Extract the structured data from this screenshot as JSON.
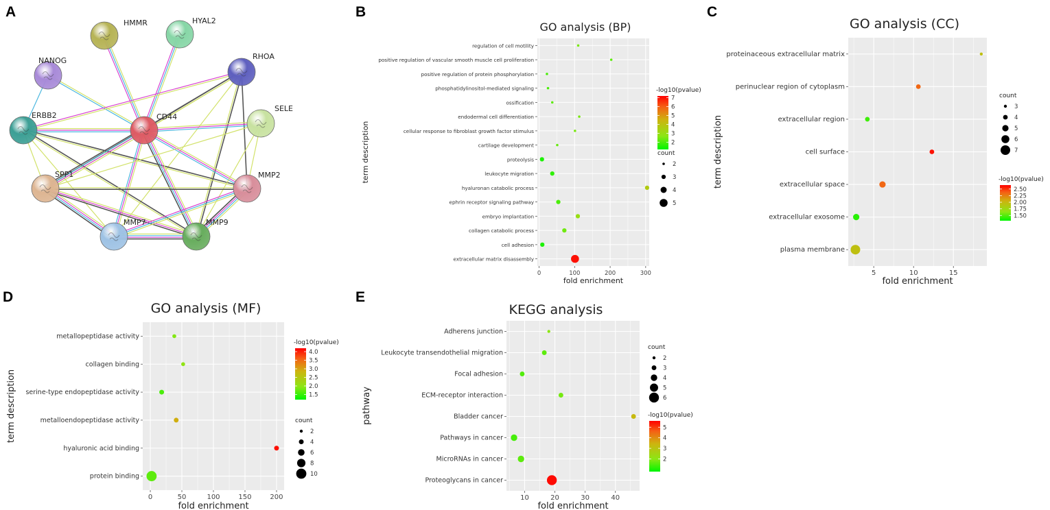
{
  "chart_data": [
    {
      "type": "network",
      "panel_label": "A",
      "nodes": [
        {
          "id": "HMMR",
          "color": "#b6b355"
        },
        {
          "id": "HYAL2",
          "color": "#86d6a6"
        },
        {
          "id": "NANOG",
          "color": "#a88ad8"
        },
        {
          "id": "RHOA",
          "color": "#5e5fbf"
        },
        {
          "id": "ERBB2",
          "color": "#3c9f95"
        },
        {
          "id": "CD44",
          "color": "#de5b64"
        },
        {
          "id": "SELE",
          "color": "#c8e2a0"
        },
        {
          "id": "SPP1",
          "color": "#ddb592"
        },
        {
          "id": "MMP2",
          "color": "#d88e9b"
        },
        {
          "id": "MMP7",
          "color": "#9ec2e4"
        },
        {
          "id": "MMP9",
          "color": "#68ad5e"
        }
      ],
      "edges": [
        {
          "source": "HMMR",
          "target": "CD44",
          "colors": [
            "#d2e26a",
            "#4db8e0",
            "#d842d0"
          ]
        },
        {
          "source": "HYAL2",
          "target": "CD44",
          "colors": [
            "#d2e26a",
            "#4db8e0",
            "#d842d0"
          ]
        },
        {
          "source": "NANOG",
          "target": "CD44",
          "colors": [
            "#d2e26a",
            "#4db8e0"
          ]
        },
        {
          "source": "NANOG",
          "target": "ERBB2",
          "colors": [
            "#4db8e0"
          ]
        },
        {
          "source": "RHOA",
          "target": "CD44",
          "colors": [
            "#d2e26a",
            "#555555"
          ]
        },
        {
          "source": "RHOA",
          "target": "ERBB2",
          "colors": [
            "#d2e26a",
            "#d842d0"
          ]
        },
        {
          "source": "RHOA",
          "target": "SPP1",
          "colors": [
            "#d2e26a",
            "#555555"
          ]
        },
        {
          "source": "RHOA",
          "target": "MMP7",
          "colors": [
            "#d2e26a"
          ]
        },
        {
          "source": "RHOA",
          "target": "MMP9",
          "colors": [
            "#555555",
            "#d2e26a"
          ]
        },
        {
          "source": "RHOA",
          "target": "MMP2",
          "colors": [
            "#555555"
          ]
        },
        {
          "source": "ERBB2",
          "target": "CD44",
          "colors": [
            "#d2e26a",
            "#d842d0",
            "#4db8e0"
          ]
        },
        {
          "source": "ERBB2",
          "target": "SPP1",
          "colors": [
            "#d2e26a"
          ]
        },
        {
          "source": "ERBB2",
          "target": "MMP2",
          "colors": [
            "#555555",
            "#d2e26a"
          ]
        },
        {
          "source": "ERBB2",
          "target": "MMP9",
          "colors": [
            "#555555",
            "#d2e26a"
          ]
        },
        {
          "source": "ERBB2",
          "target": "MMP7",
          "colors": [
            "#d2e26a"
          ]
        },
        {
          "source": "CD44",
          "target": "SELE",
          "colors": [
            "#d2e26a",
            "#d842d0",
            "#4db8e0"
          ]
        },
        {
          "source": "CD44",
          "target": "SPP1",
          "colors": [
            "#d2e26a",
            "#d842d0",
            "#4db8e0",
            "#555555"
          ]
        },
        {
          "source": "CD44",
          "target": "MMP2",
          "colors": [
            "#d2e26a",
            "#d842d0",
            "#4db8e0"
          ]
        },
        {
          "source": "CD44",
          "target": "MMP7",
          "colors": [
            "#d2e26a",
            "#d842d0",
            "#4db8e0"
          ]
        },
        {
          "source": "CD44",
          "target": "MMP9",
          "colors": [
            "#d2e26a",
            "#d842d0",
            "#4db8e0",
            "#555555"
          ]
        },
        {
          "source": "SELE",
          "target": "SPP1",
          "colors": [
            "#d2e26a"
          ]
        },
        {
          "source": "SELE",
          "target": "MMP9",
          "colors": [
            "#d2e26a"
          ]
        },
        {
          "source": "SELE",
          "target": "MMP2",
          "colors": [
            "#d2e26a"
          ]
        },
        {
          "source": "SPP1",
          "target": "MMP2",
          "colors": [
            "#d2e26a",
            "#555555"
          ]
        },
        {
          "source": "SPP1",
          "target": "MMP7",
          "colors": [
            "#d2e26a",
            "#d842d0",
            "#4db8e0",
            "#555555"
          ]
        },
        {
          "source": "SPP1",
          "target": "MMP9",
          "colors": [
            "#d2e26a",
            "#d842d0",
            "#555555"
          ]
        },
        {
          "source": "MMP2",
          "target": "MMP7",
          "colors": [
            "#d2e26a",
            "#4db8e0",
            "#d842d0"
          ]
        },
        {
          "source": "MMP2",
          "target": "MMP9",
          "colors": [
            "#d2e26a",
            "#4db8e0",
            "#d842d0",
            "#555555"
          ]
        },
        {
          "source": "MMP7",
          "target": "MMP9",
          "colors": [
            "#d2e26a",
            "#4db8e0",
            "#d842d0",
            "#555555"
          ]
        }
      ]
    },
    {
      "type": "scatter",
      "panel_label": "B",
      "title": "GO analysis (BP)",
      "xlabel": "fold enrichment",
      "ylabel": "term description",
      "xlim": [
        -5,
        310
      ],
      "xticks": [
        0,
        100,
        200,
        300
      ],
      "categories": [
        "regulation of cell motility",
        "positive regulation of vascular smooth muscle cell proliferation",
        "positive regulation of protein phosphorylation",
        "phosphatidylinositol-mediated signaling",
        "ossification",
        "endodermal cell differentiation",
        "cellular response to fibroblast growth factor stimulus",
        "cartilage development",
        "proteolysis",
        "leukocyte migration",
        "hyaluronan catabolic process",
        "ephrin receptor signaling pathway",
        "embryo implantation",
        "collagen catabolic process",
        "cell adhesion",
        "extracellular matrix disassembly"
      ],
      "points": [
        {
          "x": 110,
          "count": 2,
          "p": 2.5
        },
        {
          "x": 203,
          "count": 2,
          "p": 2.2
        },
        {
          "x": 22,
          "count": 2,
          "p": 2.0
        },
        {
          "x": 25,
          "count": 2,
          "p": 2.0
        },
        {
          "x": 37,
          "count": 2,
          "p": 2.2
        },
        {
          "x": 113,
          "count": 2,
          "p": 2.5
        },
        {
          "x": 101,
          "count": 2,
          "p": 2.5
        },
        {
          "x": 51,
          "count": 2,
          "p": 2.3
        },
        {
          "x": 8,
          "count": 3,
          "p": 1.5
        },
        {
          "x": 37,
          "count": 3,
          "p": 1.7
        },
        {
          "x": 304,
          "count": 3,
          "p": 3.7
        },
        {
          "x": 54,
          "count": 3,
          "p": 2.0
        },
        {
          "x": 109,
          "count": 3,
          "p": 3.0
        },
        {
          "x": 71,
          "count": 3,
          "p": 2.4
        },
        {
          "x": 9,
          "count": 3,
          "p": 1.5
        },
        {
          "x": 101,
          "count": 5,
          "p": 7.0
        }
      ],
      "color_legend": {
        "title": "-log10(pvalue)",
        "range": [
          1.2,
          7.2
        ],
        "ticks": [
          2,
          3,
          4,
          5,
          6,
          7
        ]
      },
      "size_legend": {
        "title": "count",
        "values": [
          2,
          3,
          4,
          5
        ]
      }
    },
    {
      "type": "scatter",
      "panel_label": "C",
      "title": "GO analysis (CC)",
      "xlabel": "fold enrichment",
      "ylabel": "term description",
      "xlim": [
        1.8,
        19.2
      ],
      "xticks": [
        5,
        10,
        15
      ],
      "categories": [
        "proteinaceous extracellular matrix",
        "perinuclear region of cytoplasm",
        "extracellular region",
        "cell surface",
        "extracellular space",
        "extracellular exosome",
        "plasma membrane"
      ],
      "points": [
        {
          "x": 18.5,
          "count": 3,
          "p": 1.95
        },
        {
          "x": 10.6,
          "count": 4,
          "p": 2.35
        },
        {
          "x": 4.2,
          "count": 4,
          "p": 1.45
        },
        {
          "x": 12.3,
          "count": 4,
          "p": 2.6
        },
        {
          "x": 6.1,
          "count": 5,
          "p": 2.35
        },
        {
          "x": 2.8,
          "count": 5,
          "p": 1.4
        },
        {
          "x": 2.7,
          "count": 7,
          "p": 1.95
        }
      ],
      "color_legend": {
        "title": "-log10(pvalue)",
        "range": [
          1.3,
          2.65
        ],
        "ticks": [
          1.5,
          1.75,
          2.0,
          2.25,
          2.5
        ],
        "tick_labels": [
          "1.50",
          "1.75",
          "2.00",
          "2.25",
          "2.50"
        ]
      },
      "size_legend": {
        "title": "count",
        "values": [
          3,
          4,
          5,
          6,
          7
        ]
      }
    },
    {
      "type": "scatter",
      "panel_label": "D",
      "title": "GO analysis (MF)",
      "xlabel": "fold enrichment",
      "ylabel": "term description",
      "xlim": [
        -12,
        212
      ],
      "xticks": [
        0,
        50,
        100,
        150,
        200
      ],
      "categories": [
        "metallopeptidase activity",
        "collagen binding",
        "serine-type endopeptidase activity",
        "metalloendopeptidase activity",
        "hyaluronic acid binding",
        "protein binding"
      ],
      "points": [
        {
          "x": 38,
          "count": 3,
          "p": 1.9
        },
        {
          "x": 52,
          "count": 3,
          "p": 2.0
        },
        {
          "x": 18,
          "count": 4,
          "p": 1.6
        },
        {
          "x": 41,
          "count": 4,
          "p": 2.9
        },
        {
          "x": 200,
          "count": 4,
          "p": 4.1
        },
        {
          "x": 2,
          "count": 10,
          "p": 1.7
        }
      ],
      "color_legend": {
        "title": "-log10(pvalue)",
        "range": [
          1.2,
          4.2
        ],
        "ticks": [
          1.5,
          2.0,
          2.5,
          3.0,
          3.5,
          4.0
        ],
        "tick_labels": [
          "1.5",
          "2.0",
          "2.5",
          "3.0",
          "3.5",
          "4.0"
        ]
      },
      "size_legend": {
        "title": "count",
        "values": [
          2,
          4,
          6,
          8,
          10
        ]
      }
    },
    {
      "type": "scatter",
      "panel_label": "E",
      "title": "KEGG analysis",
      "xlabel": "fold enrichment",
      "ylabel": "pathway",
      "xlim": [
        4,
        48
      ],
      "xticks": [
        10,
        20,
        30,
        40
      ],
      "categories": [
        "Adherens junction",
        "Leukocyte transendothelial migration",
        "Focal adhesion",
        "ECM-receptor interaction",
        "Bladder cancer",
        "Pathways in cancer",
        "MicroRNAs in cancer",
        "Proteoglycans in cancer"
      ],
      "points": [
        {
          "x": 18,
          "count": 2,
          "p": 2.0
        },
        {
          "x": 16.5,
          "count": 3,
          "p": 1.6
        },
        {
          "x": 9.2,
          "count": 3,
          "p": 1.5
        },
        {
          "x": 22,
          "count": 3,
          "p": 1.8
        },
        {
          "x": 46,
          "count": 3,
          "p": 3.3
        },
        {
          "x": 6.5,
          "count": 4,
          "p": 1.4
        },
        {
          "x": 8.8,
          "count": 4,
          "p": 1.6
        },
        {
          "x": 19,
          "count": 6,
          "p": 5.5
        }
      ],
      "color_legend": {
        "title": "-log10(pvalue)",
        "range": [
          0.8,
          5.6
        ],
        "ticks": [
          2,
          3,
          4,
          5
        ]
      },
      "size_legend": {
        "title": "count",
        "values": [
          2,
          3,
          4,
          5,
          6
        ]
      }
    }
  ]
}
